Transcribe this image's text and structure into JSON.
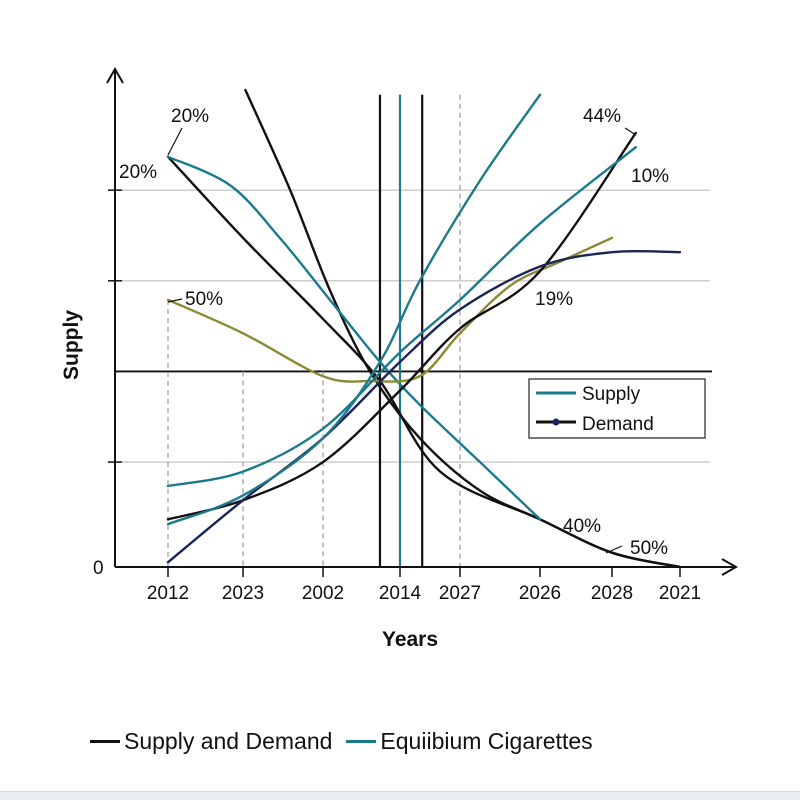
{
  "chart_data": {
    "type": "line",
    "title": "",
    "xlabel": "Years",
    "ylabel": "Supply",
    "categories": [
      "2012",
      "2023",
      "2002",
      "2014",
      "2027",
      "2026",
      "2028",
      "2021"
    ],
    "y_tick_labels": [
      "0"
    ],
    "ylim": [
      0,
      100
    ],
    "grid": true,
    "gridlines_y": [
      22,
      60,
      79
    ],
    "reference_line_y": 41,
    "vertical_lines": [
      {
        "x": 2.74,
        "color": "#111111"
      },
      {
        "x": 3.0,
        "color": "#1b7a8c"
      },
      {
        "x": 3.37,
        "color": "#111111"
      }
    ],
    "dashed_verticals": [
      {
        "x": 0,
        "top": 56
      },
      {
        "x": 1,
        "top": 41
      },
      {
        "x": 2,
        "top": 41
      },
      {
        "x": 4,
        "top": 99
      }
    ],
    "series": [
      {
        "color": "#111111",
        "points": [
          [
            1.03,
            100
          ],
          [
            1.59,
            79
          ],
          [
            2.09,
            58
          ],
          [
            2.61,
            41
          ],
          [
            3.33,
            27
          ],
          [
            4.25,
            16
          ],
          [
            5,
            10
          ],
          [
            6,
            3
          ],
          [
            7,
            0
          ]
        ]
      },
      {
        "color": "#111111",
        "points": [
          [
            0,
            86
          ],
          [
            1,
            69
          ],
          [
            2,
            52
          ],
          [
            2.74,
            39
          ],
          [
            3.67,
            20
          ],
          [
            5,
            10
          ],
          [
            6,
            3
          ],
          [
            7,
            0
          ]
        ]
      },
      {
        "color": "#1b7a8c",
        "points": [
          [
            0,
            86
          ],
          [
            0.83,
            80
          ],
          [
            1.46,
            69
          ],
          [
            2.09,
            56
          ],
          [
            2.74,
            43
          ],
          [
            3.33,
            34
          ],
          [
            4.25,
            22
          ],
          [
            5,
            10
          ]
        ]
      },
      {
        "color": "#8a8a35",
        "points": [
          [
            0,
            56
          ],
          [
            1,
            49
          ],
          [
            2,
            40
          ],
          [
            2.61,
            39
          ],
          [
            3.33,
            40
          ],
          [
            4,
            49
          ],
          [
            4.63,
            59
          ],
          [
            5.28,
            64
          ],
          [
            6,
            69
          ]
        ]
      },
      {
        "color": "#111111",
        "points": [
          [
            0,
            10
          ],
          [
            1,
            14
          ],
          [
            2,
            22
          ],
          [
            3,
            37
          ],
          [
            4,
            50
          ],
          [
            5,
            62
          ],
          [
            6.35,
            91
          ]
        ]
      },
      {
        "color": "#1a2456",
        "points": [
          [
            0,
            1
          ],
          [
            1,
            14
          ],
          [
            2,
            27
          ],
          [
            3,
            43
          ],
          [
            4,
            54
          ],
          [
            5,
            63
          ],
          [
            6,
            66
          ],
          [
            7,
            66
          ]
        ]
      },
      {
        "color": "#1b7a8c",
        "points": [
          [
            0,
            17
          ],
          [
            1,
            20
          ],
          [
            2,
            29
          ],
          [
            3,
            45
          ],
          [
            4,
            56
          ],
          [
            5,
            72
          ],
          [
            6.35,
            88
          ]
        ]
      },
      {
        "color": "#1b7a8c",
        "points": [
          [
            0,
            9
          ],
          [
            1,
            15
          ],
          [
            2,
            27
          ],
          [
            2.74,
            43
          ],
          [
            3.33,
            60
          ],
          [
            4.25,
            81
          ],
          [
            5,
            99
          ]
        ]
      }
    ],
    "annotations": [
      "20%",
      "20%",
      "50%",
      "44%",
      "10%",
      "19%",
      "40%",
      "50%"
    ],
    "legend": {
      "placement": "center-right",
      "entries": [
        {
          "label": "Supply",
          "color": "#1b7a8c",
          "marker": "none"
        },
        {
          "label": "Demand",
          "color": "#111111",
          "marker": "dot"
        }
      ]
    },
    "bottom_legend": [
      {
        "label": "Supply and Demand",
        "color": "#111111"
      },
      {
        "label": "Equiibium Cigarettes",
        "color": "#1b7a8c"
      }
    ]
  }
}
